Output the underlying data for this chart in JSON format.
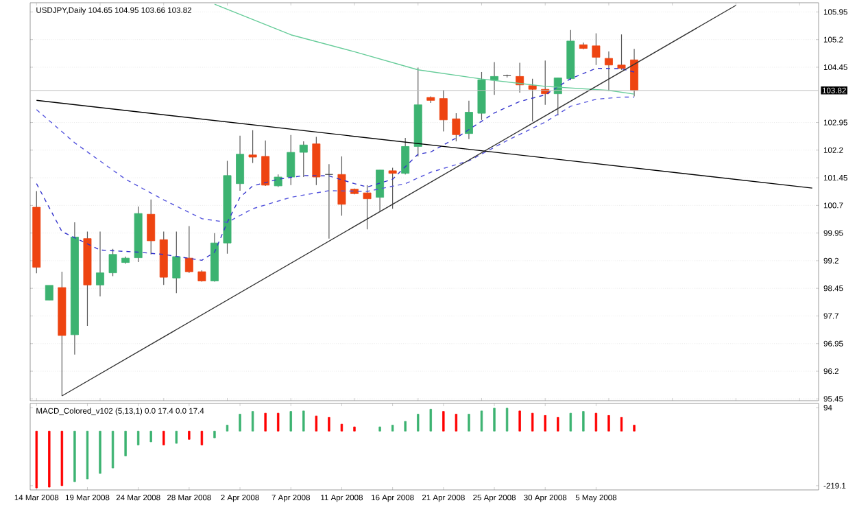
{
  "chart_data": [
    {
      "type": "candlestick",
      "title": "USDJPY,Daily 104.65 104.95 103.66 103.82",
      "tick_labels": "y",
      "grid": "y",
      "categories": [
        null,
        null,
        null,
        null,
        null,
        null,
        null,
        null,
        null,
        null,
        null,
        null,
        null,
        null,
        null,
        null,
        null,
        null,
        null,
        null,
        null,
        null,
        null,
        null,
        null,
        null,
        null,
        null,
        null,
        null,
        null,
        null,
        null,
        null,
        null,
        null,
        null,
        null,
        null,
        null,
        null,
        null,
        null,
        null,
        null,
        null,
        null,
        null,
        null,
        null,
        null,
        null,
        null,
        null,
        null,
        null,
        null,
        null,
        null,
        null,
        null,
        null
      ],
      "ohlc": [
        [
          100.65,
          101.09,
          98.86,
          99.02
        ],
        [
          98.13,
          98.53,
          98.13,
          98.53
        ],
        [
          98.47,
          98.9,
          95.53,
          97.17
        ],
        [
          97.19,
          100.24,
          96.65,
          99.84
        ],
        [
          99.8,
          99.99,
          97.43,
          98.54
        ],
        [
          98.54,
          99.99,
          98.23,
          98.87
        ],
        [
          98.87,
          99.52,
          98.78,
          99.37
        ],
        [
          99.15,
          99.31,
          99.12,
          99.27
        ],
        [
          99.28,
          100.67,
          99.16,
          100.48
        ],
        [
          100.46,
          100.86,
          99.37,
          99.74
        ],
        [
          99.77,
          99.99,
          98.54,
          98.75
        ],
        [
          98.73,
          99.99,
          98.32,
          99.31
        ],
        [
          99.27,
          100.14,
          98.87,
          98.9
        ],
        [
          98.9,
          98.94,
          98.63,
          98.65
        ],
        [
          98.65,
          99.95,
          98.63,
          99.68
        ],
        [
          99.68,
          101.91,
          99.39,
          101.51
        ],
        [
          101.29,
          102.59,
          101.1,
          102.09
        ],
        [
          102.07,
          102.74,
          101.85,
          102.01
        ],
        [
          102.03,
          102.46,
          101.23,
          101.25
        ],
        [
          101.23,
          101.54,
          101.2,
          101.47
        ],
        [
          101.47,
          102.61,
          101.25,
          102.14
        ],
        [
          102.14,
          102.44,
          101.47,
          102.34
        ],
        [
          102.37,
          102.56,
          101.25,
          101.47
        ],
        [
          101.54,
          101.82,
          99.8,
          101.54
        ],
        [
          101.54,
          102.03,
          100.42,
          100.73
        ],
        [
          101.14,
          101.16,
          101.0,
          101.02
        ],
        [
          101.04,
          101.25,
          100.05,
          100.88
        ],
        [
          100.92,
          101.66,
          100.55,
          101.66
        ],
        [
          101.64,
          101.72,
          100.61,
          101.57
        ],
        [
          101.57,
          102.53,
          101.54,
          102.3
        ],
        [
          102.3,
          104.44,
          102.03,
          103.43
        ],
        [
          103.63,
          103.66,
          103.48,
          103.55
        ],
        [
          103.6,
          103.83,
          102.71,
          103.02
        ],
        [
          103.05,
          103.2,
          102.44,
          102.62
        ],
        [
          102.65,
          103.54,
          102.5,
          103.23
        ],
        [
          103.2,
          104.32,
          103.02,
          104.11
        ],
        [
          104.1,
          104.59,
          103.7,
          104.2
        ],
        [
          104.22,
          104.25,
          104.17,
          104.22
        ],
        [
          104.2,
          104.57,
          103.76,
          103.97
        ],
        [
          103.95,
          104.14,
          102.98,
          103.85
        ],
        [
          103.85,
          104.63,
          103.43,
          103.73
        ],
        [
          103.73,
          104.16,
          103.14,
          104.16
        ],
        [
          104.14,
          105.46,
          104.1,
          105.16
        ],
        [
          105.06,
          105.12,
          104.94,
          104.96
        ],
        [
          105.03,
          105.37,
          104.51,
          104.72
        ],
        [
          104.69,
          104.88,
          103.8,
          104.51
        ],
        [
          104.51,
          105.34,
          104.38,
          104.42
        ],
        [
          104.65,
          104.95,
          103.66,
          103.82
        ],
        null,
        null,
        null,
        null,
        null,
        null,
        null,
        null,
        null,
        null,
        null,
        null,
        null,
        null
      ],
      "colors": [
        "#ee4411",
        "#3cb371",
        "#ee4411",
        "#3cb371",
        "#ee4411",
        "#3cb371",
        "#3cb371",
        "#3cb371",
        "#3cb371",
        "#ee4411",
        "#ee4411",
        "#3cb371",
        "#ee4411",
        "#ee4411",
        "#3cb371",
        "#3cb371",
        "#3cb371",
        "#ee4411",
        "#ee4411",
        "#3cb371",
        "#3cb371",
        "#3cb371",
        "#ee4411",
        "#404040",
        "#ee4411",
        "#ee4411",
        "#ee4411",
        "#3cb371",
        "#ee4411",
        "#3cb371",
        "#3cb371",
        "#ee4411",
        "#ee4411",
        "#ee4411",
        "#3cb371",
        "#3cb371",
        "#3cb371",
        "#404040",
        "#ee4411",
        "#ee4411",
        "#ee4411",
        "#3cb371",
        "#3cb371",
        "#ee4411",
        "#ee4411",
        "#ee4411",
        "#ee4411",
        "#ee4411",
        null,
        null,
        null,
        null,
        null,
        null,
        null,
        null,
        null,
        null,
        null,
        null,
        null,
        null
      ],
      "ylim": [
        95.4,
        106.2
      ],
      "yticks": [
        95.45,
        96.2,
        96.95,
        97.7,
        98.45,
        99.2,
        99.95,
        100.7,
        101.45,
        102.2,
        102.95,
        104.45,
        105.2,
        105.95
      ],
      "series": [
        {
          "type": "line",
          "color": "#3333cc",
          "line_style": "dashed",
          "values": [
            101.29,
            null,
            99.99,
            null,
            null,
            99.49,
            null,
            null,
            99.43,
            null,
            99.37,
            null,
            null,
            99.21,
            99.43,
            100.24,
            100.92,
            101.23,
            null,
            101.41,
            null,
            101.51,
            null,
            101.5,
            null,
            101.29,
            101.2,
            null,
            101.41,
            null,
            102.09,
            102.15,
            null,
            102.53,
            null,
            null,
            103.21,
            null,
            103.52,
            null,
            103.7,
            null,
            104.14,
            null,
            104.42,
            null,
            104.41,
            104.32,
            null,
            null,
            null,
            null,
            null,
            null,
            null,
            null,
            null,
            null,
            null,
            null,
            null,
            null
          ]
        },
        {
          "type": "line",
          "color": "#5555dd",
          "line_style": "dashed",
          "values": [
            103.3,
            null,
            null,
            102.4,
            null,
            null,
            null,
            101.41,
            null,
            null,
            100.85,
            null,
            null,
            100.34,
            null,
            100.24,
            null,
            100.61,
            null,
            null,
            100.92,
            null,
            null,
            101.1,
            null,
            null,
            101.08,
            null,
            null,
            101.29,
            null,
            101.6,
            null,
            null,
            101.91,
            null,
            null,
            102.46,
            null,
            null,
            102.96,
            null,
            103.39,
            null,
            103.58,
            null,
            103.64,
            103.64,
            null,
            null,
            null,
            null,
            null,
            null,
            null,
            null,
            null,
            null,
            null,
            null,
            null,
            null
          ]
        },
        {
          "type": "line",
          "color": "#66cc99",
          "line_style": "solid",
          "values": [
            null,
            null,
            null,
            null,
            null,
            null,
            null,
            null,
            null,
            null,
            null,
            null,
            null,
            null,
            106.16,
            null,
            null,
            null,
            null,
            null,
            105.33,
            null,
            null,
            null,
            null,
            104.87,
            null,
            null,
            null,
            null,
            104.38,
            null,
            null,
            null,
            null,
            104.13,
            null,
            null,
            null,
            null,
            103.93,
            null,
            null,
            null,
            null,
            103.82,
            null,
            103.72,
            null,
            null,
            null,
            null,
            null,
            null,
            null,
            null,
            null,
            null,
            null,
            null,
            null,
            null
          ]
        },
        {
          "type": "line",
          "color": "#333333",
          "line_style": "solid",
          "values": [
            null,
            null,
            95.53,
            null,
            null,
            null,
            null,
            null,
            null,
            null,
            null,
            null,
            null,
            null,
            null,
            null,
            null,
            null,
            null,
            null,
            null,
            null,
            null,
            null,
            null,
            null,
            null,
            null,
            null,
            null,
            null,
            null,
            null,
            null,
            null,
            null,
            null,
            null,
            null,
            null,
            null,
            null,
            null,
            null,
            null,
            null,
            null,
            null,
            null,
            null,
            null,
            null,
            null,
            null,
            null,
            106.13,
            null,
            null,
            null,
            null,
            null,
            null
          ]
        },
        {
          "type": "line",
          "color": "#000000",
          "line_style": "solid",
          "values": [
            103.55,
            null,
            null,
            null,
            null,
            null,
            null,
            null,
            null,
            null,
            null,
            null,
            null,
            null,
            null,
            null,
            null,
            null,
            null,
            null,
            null,
            null,
            null,
            null,
            null,
            null,
            null,
            null,
            null,
            null,
            null,
            null,
            null,
            null,
            null,
            null,
            null,
            null,
            null,
            null,
            null,
            null,
            null,
            null,
            null,
            null,
            null,
            null,
            null,
            null,
            null,
            null,
            null,
            null,
            null,
            null,
            null,
            null,
            null,
            null,
            null,
            101.17
          ]
        }
      ],
      "ref_lines": [
        {
          "axis": "y",
          "value": 103.82,
          "label": "103.82",
          "color": "#c0c0c0",
          "line_style": "solid"
        }
      ]
    },
    {
      "type": "bar",
      "title": "MACD_Colored_v102 (5,13,1) 0.0 17.4 0.0 17.4",
      "categories": [
        "14 Mar 2008",
        null,
        null,
        null,
        "19 Mar 2008",
        null,
        null,
        null,
        "24 Mar 2008",
        null,
        null,
        null,
        "28 Mar 2008",
        null,
        null,
        null,
        "2 Apr 2008",
        null,
        null,
        null,
        "7 Apr 2008",
        null,
        null,
        null,
        "11 Apr 2008",
        null,
        null,
        null,
        "16 Apr 2008",
        null,
        null,
        null,
        "21 Apr 2008",
        null,
        null,
        null,
        "25 Apr 2008",
        null,
        null,
        null,
        "30 Apr 2008",
        null,
        null,
        null,
        "5 May 2008",
        null,
        null,
        null,
        null,
        null,
        null,
        null,
        null,
        null,
        null,
        null,
        null,
        null,
        null,
        null,
        null,
        null
      ],
      "values": [
        -228,
        -225,
        -219,
        -203,
        -192,
        -170,
        -148,
        -100,
        -56,
        -43,
        -56,
        -49,
        -33,
        -56,
        -27,
        24,
        68,
        79,
        72,
        72,
        79,
        81,
        61,
        55,
        28,
        17,
        null,
        17,
        24,
        39,
        68,
        88,
        79,
        68,
        68,
        81,
        92,
        92,
        81,
        72,
        63,
        55,
        72,
        79,
        72,
        63,
        55,
        24,
        null,
        null,
        null,
        null,
        null,
        null,
        null,
        null,
        null,
        null,
        null,
        null,
        null,
        null
      ],
      "colors": [
        "#ff0000",
        "#ff0000",
        "#ff0000",
        "#3cb371",
        "#3cb371",
        "#3cb371",
        "#3cb371",
        "#3cb371",
        "#3cb371",
        "#3cb371",
        "#ff0000",
        "#3cb371",
        "#ff0000",
        "#ff0000",
        "#3cb371",
        "#3cb371",
        "#3cb371",
        "#3cb371",
        "#ff0000",
        "#ff0000",
        "#3cb371",
        "#3cb371",
        "#ff0000",
        "#ff0000",
        "#ff0000",
        "#ff0000",
        null,
        "#3cb371",
        "#3cb371",
        "#3cb371",
        "#3cb371",
        "#3cb371",
        "#ff0000",
        "#ff0000",
        "#3cb371",
        "#3cb371",
        "#3cb371",
        "#3cb371",
        "#ff0000",
        "#ff0000",
        "#ff0000",
        "#ff0000",
        "#3cb371",
        "#3cb371",
        "#ff0000",
        "#ff0000",
        "#ff0000",
        "#ff0000",
        null,
        null,
        null,
        null,
        null,
        null,
        null,
        null,
        null,
        null,
        null,
        null,
        null,
        null
      ],
      "ylim": [
        -236,
        111
      ],
      "yticks": [
        -219.1,
        94
      ]
    }
  ]
}
